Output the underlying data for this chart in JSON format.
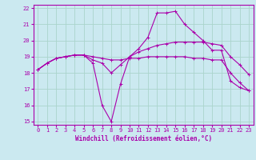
{
  "title": "",
  "xlabel": "Windchill (Refroidissement éolien,°C)",
  "ylabel": "",
  "bg_color": "#cbe9f0",
  "grid_color": "#aad4cc",
  "line_color": "#aa00aa",
  "xlim": [
    -0.5,
    23.5
  ],
  "ylim": [
    14.8,
    22.2
  ],
  "xticks": [
    0,
    1,
    2,
    3,
    4,
    5,
    6,
    7,
    8,
    9,
    10,
    11,
    12,
    13,
    14,
    15,
    16,
    17,
    18,
    19,
    20,
    21,
    22,
    23
  ],
  "yticks": [
    15,
    16,
    17,
    18,
    19,
    20,
    21,
    22
  ],
  "line1": [
    18.2,
    18.6,
    18.9,
    19.0,
    19.1,
    19.1,
    18.6,
    16.0,
    15.0,
    17.3,
    19.0,
    19.5,
    20.2,
    21.7,
    21.7,
    21.8,
    21.0,
    20.5,
    20.0,
    19.4,
    19.4,
    17.5,
    17.1,
    16.9
  ],
  "line2": [
    18.2,
    18.6,
    18.9,
    19.0,
    19.1,
    19.1,
    18.8,
    18.6,
    18.0,
    18.5,
    19.0,
    19.3,
    19.5,
    19.7,
    19.8,
    19.9,
    19.9,
    19.9,
    19.9,
    19.8,
    19.7,
    19.0,
    18.5,
    17.9
  ],
  "line3": [
    18.2,
    18.6,
    18.9,
    19.0,
    19.1,
    19.1,
    19.0,
    18.9,
    18.8,
    18.8,
    18.9,
    18.9,
    19.0,
    19.0,
    19.0,
    19.0,
    19.0,
    18.9,
    18.9,
    18.8,
    18.8,
    18.0,
    17.4,
    16.9
  ],
  "tick_fontsize": 5.0,
  "xlabel_fontsize": 5.5
}
